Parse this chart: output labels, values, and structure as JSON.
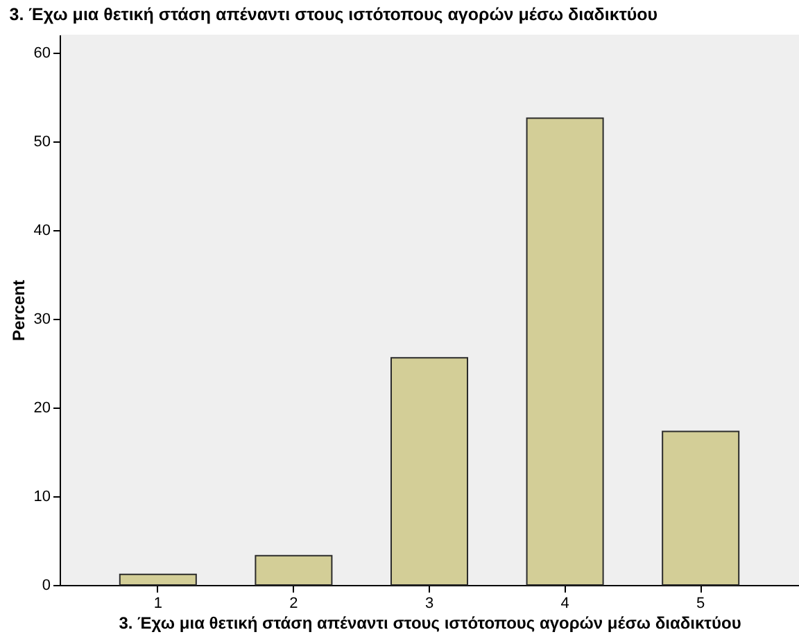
{
  "chart_data": {
    "type": "bar",
    "title": "3. Έχω μια θετική στάση απέναντι στους ιστότοπους αγορών μέσω διαδικτύου",
    "xlabel": "3. Έχω μια θετική στάση απέναντι στους ιστότοπους αγορών μέσω διαδικτύου",
    "ylabel": "Percent",
    "categories": [
      "1",
      "2",
      "3",
      "4",
      "5"
    ],
    "values": [
      1.2,
      3.3,
      25.6,
      52.6,
      17.3
    ],
    "color": "#d3ce97",
    "ylim": [
      0,
      62
    ],
    "yticks": [
      0,
      10,
      20,
      30,
      40,
      50,
      60
    ]
  }
}
